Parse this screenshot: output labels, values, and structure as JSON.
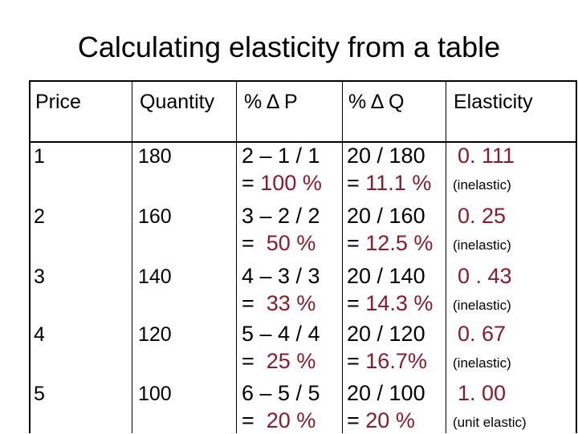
{
  "title": "Calculating elasticity from a table",
  "headers": [
    "Price",
    "Quantity",
    "% Δ P",
    "% Δ Q",
    "Elasticity"
  ],
  "rows": [
    {
      "price": "1",
      "quantity": "180",
      "dp_formula": "2 – 1 / 1",
      "dp_result_prefix": "= ",
      "dp_result": "100 %",
      "dq_formula": "20 / 180",
      "dq_result_prefix": "= ",
      "dq_result": "11.1 %",
      "elasticity": "0. 111",
      "note": "(inelastic)"
    },
    {
      "price": "2",
      "quantity": "160",
      "dp_formula": "3 – 2 / 2",
      "dp_result_prefix": "=  ",
      "dp_result": "50 %",
      "dq_formula": "20 / 160",
      "dq_result_prefix": "= ",
      "dq_result": "12.5 %",
      "elasticity": "0. 25",
      "note": "(inelastic)"
    },
    {
      "price": "3",
      "quantity": "140",
      "dp_formula": "4 – 3 / 3",
      "dp_result_prefix": "=  ",
      "dp_result": "33 %",
      "dq_formula": "20 / 140",
      "dq_result_prefix": "= ",
      "dq_result": "14.3 %",
      "elasticity": "0 . 43",
      "note": "(inelastic)"
    },
    {
      "price": "4",
      "quantity": "120",
      "dp_formula": "5 – 4 / 4",
      "dp_result_prefix": "=  ",
      "dp_result": "25 %",
      "dq_formula": "20 / 120",
      "dq_result_prefix": "= ",
      "dq_result": "16.7%",
      "elasticity": "0. 67",
      "note": "(inelastic)"
    },
    {
      "price": "5",
      "quantity": "100",
      "dp_formula": "6 – 5 / 5",
      "dp_result_prefix": "=  ",
      "dp_result": "20 %",
      "dq_formula": "20 / 100",
      "dq_result_prefix": "= ",
      "dq_result": "20 %",
      "elasticity": "1. 00",
      "note": "(unit elastic)"
    }
  ],
  "colors": {
    "accent": "#8b1a2b",
    "border": "#000000",
    "text": "#000000"
  }
}
